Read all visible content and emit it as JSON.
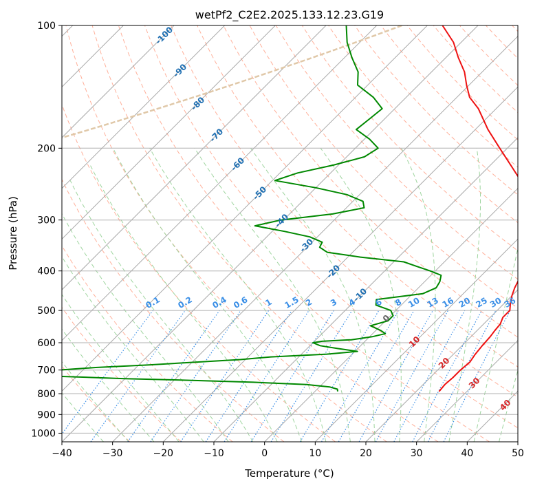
{
  "chart_data": {
    "type": "line",
    "chart_kind": "skew-T log-P diagram",
    "title": "wetPf2_C2E2.2025.133.12.23.G19",
    "xlabel": "Temperature (°C)",
    "ylabel": "Pressure (hPa)",
    "x_scale": "linear (isotherms skewed 45°)",
    "y_scale": "log",
    "xlim": [
      -40,
      50
    ],
    "ylim": [
      1050,
      100
    ],
    "x_ticks": [
      -40,
      -30,
      -20,
      -10,
      0,
      10,
      20,
      30,
      40,
      50
    ],
    "x_tick_labels": [
      "−40",
      "−30",
      "−20",
      "−10",
      "0",
      "10",
      "20",
      "30",
      "40",
      "50"
    ],
    "y_ticks": [
      100,
      200,
      300,
      400,
      500,
      600,
      700,
      800,
      900,
      1000
    ],
    "y_tick_labels": [
      "100",
      "200",
      "300",
      "400",
      "500",
      "600",
      "700",
      "800",
      "900",
      "1000"
    ],
    "grid": true,
    "series": [
      {
        "role": "temperature",
        "color": "#ee1111",
        "pressure": [
          790,
          760,
          730,
          700,
          670,
          640,
          610,
          580,
          560,
          540,
          520,
          500,
          480,
          460,
          440,
          420,
          400,
          380,
          360,
          340,
          320,
          300,
          280,
          260,
          240,
          220,
          200,
          180,
          160,
          150,
          140,
          130,
          120,
          110,
          100
        ],
        "temperature": [
          24.5,
          24.3,
          24.5,
          24.5,
          24.8,
          24.3,
          24.0,
          23.8,
          23.5,
          23.3,
          22.5,
          22.5,
          21.2,
          20.0,
          19.0,
          18.2,
          18.5,
          19.0,
          19.0,
          17.5,
          14.5,
          11.2,
          7.2,
          3.4,
          -1.0,
          -6.0,
          -11.5,
          -17.5,
          -23.5,
          -27.5,
          -30.5,
          -33.5,
          -37.5,
          -41.5,
          -47.0
        ]
      },
      {
        "role": "dewpoint",
        "color": "#008800",
        "pressure": [
          790,
          780,
          770,
          760,
          750,
          740,
          735,
          720,
          705,
          690,
          680,
          660,
          650,
          640,
          630,
          620,
          610,
          600,
          595,
          590,
          580,
          570,
          560,
          545,
          530,
          515,
          500,
          485,
          470,
          455,
          440,
          425,
          410,
          400,
          390,
          380,
          370,
          360,
          350,
          340,
          330,
          320,
          310,
          300,
          290,
          280,
          270,
          260,
          250,
          240,
          230,
          220,
          210,
          200,
          190,
          180,
          170,
          160,
          150,
          140,
          130,
          120,
          110,
          100
        ],
        "dewpoint": [
          4.5,
          4.0,
          2.0,
          -3.0,
          -14.0,
          -30.0,
          -40.0,
          -61.0,
          -58.0,
          -48.0,
          -38.0,
          -21.0,
          -15.5,
          -5.0,
          0.5,
          -4.0,
          -8.0,
          -10.0,
          -8.5,
          -3.0,
          0.5,
          2.5,
          1.0,
          -2.0,
          0.5,
          0.5,
          -1.0,
          -5.0,
          -6.0,
          2.0,
          3.5,
          3.0,
          2.0,
          -1.0,
          -4.5,
          -8.0,
          -17.5,
          -25.0,
          -27.5,
          -28.0,
          -31.5,
          -37.5,
          -44.5,
          -40.5,
          -31.5,
          -26.5,
          -28.0,
          -32.5,
          -40.0,
          -49.5,
          -46.5,
          -41.0,
          -36.5,
          -35.5,
          -39.0,
          -43.5,
          -43.0,
          -42.5,
          -46.5,
          -52.0,
          -54.5,
          -58.5,
          -62.5,
          -66.0
        ]
      }
    ],
    "dry_adiabat_labels": [
      "-100",
      "-90",
      "-80",
      "-70",
      "-60",
      "-50",
      "-40",
      "-30",
      "-20",
      "-10",
      "0",
      "10",
      "20",
      "30",
      "40"
    ],
    "mixing_ratio_labels": [
      "0.1",
      "0.2",
      "0.4",
      "0.6",
      "1",
      "1.5",
      "2",
      "3",
      "4",
      "6",
      "8",
      "10",
      "13",
      "16",
      "20",
      "25",
      "30",
      "36"
    ],
    "colors": {
      "temperature": "#ee1111",
      "dewpoint": "#008800",
      "isotherm": "#a8a8a8",
      "dry_adiabat": "#ffb09a",
      "moist_adiabat": "#9fd59f",
      "mixing_ratio": "#3b8fe6",
      "label_cool": "#1f6fb2",
      "label_warm": "#d62728",
      "mixing_label": "#3b8fe6",
      "zero_label": "#666666",
      "legacy_curve": "#e0c8a8"
    }
  }
}
